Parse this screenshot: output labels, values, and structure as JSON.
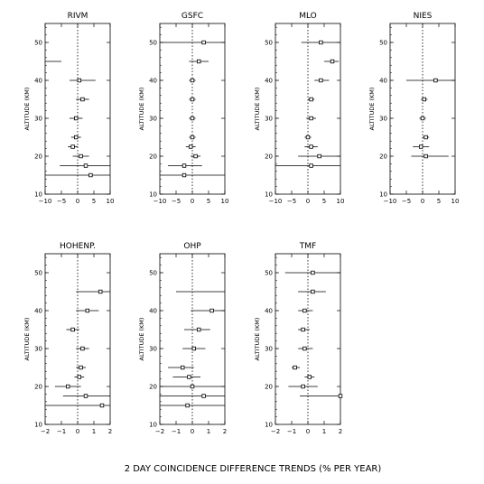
{
  "figure": {
    "caption": "2 DAY COINCIDENCE DIFFERENCE TRENDS (% PER YEAR)"
  },
  "chart_data": [
    {
      "type": "scatter",
      "title": "RIVM",
      "ylabel": "ALTITUDE (KM)",
      "xlabel": "",
      "xlim": [
        -10,
        10
      ],
      "ylim": [
        10,
        55
      ],
      "xticks": [
        "−10",
        "−5",
        "0",
        "5",
        "10"
      ],
      "yticks": [
        "10",
        "20",
        "30",
        "40",
        "50"
      ],
      "zero_line": "dotted",
      "points": [
        {
          "alt": 45,
          "trend": null,
          "err_lo": -10,
          "err_hi": -5
        },
        {
          "alt": 40,
          "trend": 0.5,
          "err_lo": -2.5,
          "err_hi": 5.5
        },
        {
          "alt": 35,
          "trend": 1.5,
          "err_lo": -0.5,
          "err_hi": 3.5
        },
        {
          "alt": 30,
          "trend": -0.5,
          "err_lo": -2.5,
          "err_hi": 1.5
        },
        {
          "alt": 25,
          "trend": -0.5,
          "err_lo": -2.0,
          "err_hi": 1.0
        },
        {
          "alt": 22.5,
          "trend": -1.5,
          "err_lo": -3.0,
          "err_hi": 0.0
        },
        {
          "alt": 20,
          "trend": 1.0,
          "err_lo": -1.5,
          "err_hi": 3.5
        },
        {
          "alt": 17.5,
          "trend": 2.5,
          "err_lo": -5.5,
          "err_hi": 10
        },
        {
          "alt": 15,
          "trend": 4.0,
          "err_lo": -10,
          "err_hi": 10
        }
      ]
    },
    {
      "type": "scatter",
      "title": "GSFC",
      "ylabel": "ALTITUDE (KM)",
      "xlabel": "",
      "xlim": [
        -10,
        10
      ],
      "ylim": [
        10,
        55
      ],
      "xticks": [
        "−10",
        "−5",
        "0",
        "5",
        "10"
      ],
      "yticks": [
        "10",
        "20",
        "30",
        "40",
        "50"
      ],
      "zero_line": "dotted",
      "points": [
        {
          "alt": 50,
          "trend": 3.5,
          "err_lo": -10,
          "err_hi": 10
        },
        {
          "alt": 45,
          "trend": 2.0,
          "err_lo": -1.0,
          "err_hi": 5.0
        },
        {
          "alt": 40,
          "trend": 0.0,
          "err_lo": -1.0,
          "err_hi": 1.0
        },
        {
          "alt": 35,
          "trend": 0.0,
          "err_lo": -1.0,
          "err_hi": 1.0
        },
        {
          "alt": 30,
          "trend": 0.0,
          "err_lo": -1.0,
          "err_hi": 1.0
        },
        {
          "alt": 25,
          "trend": 0.0,
          "err_lo": -1.0,
          "err_hi": 1.0
        },
        {
          "alt": 22.5,
          "trend": -0.5,
          "err_lo": -2.0,
          "err_hi": 1.0
        },
        {
          "alt": 20,
          "trend": 1.0,
          "err_lo": -0.5,
          "err_hi": 2.5
        },
        {
          "alt": 17.5,
          "trend": -2.5,
          "err_lo": -7.5,
          "err_hi": 3.0
        },
        {
          "alt": 15,
          "trend": -2.5,
          "err_lo": -10,
          "err_hi": 10
        }
      ]
    },
    {
      "type": "scatter",
      "title": "MLO",
      "ylabel": "ALTITUDE (KM)",
      "xlabel": "",
      "xlim": [
        -10,
        10
      ],
      "ylim": [
        10,
        55
      ],
      "xticks": [
        "−10",
        "−5",
        "0",
        "5",
        "10"
      ],
      "yticks": [
        "10",
        "20",
        "30",
        "40",
        "50"
      ],
      "zero_line": "dotted",
      "points": [
        {
          "alt": 50,
          "trend": 4.0,
          "err_lo": -2.0,
          "err_hi": 10
        },
        {
          "alt": 45,
          "trend": 7.5,
          "err_lo": 5.0,
          "err_hi": 9.5
        },
        {
          "alt": 40,
          "trend": 4.0,
          "err_lo": 2.0,
          "err_hi": 6.5
        },
        {
          "alt": 35,
          "trend": 1.0,
          "err_lo": 0.0,
          "err_hi": 2.0
        },
        {
          "alt": 30,
          "trend": 1.0,
          "err_lo": -0.5,
          "err_hi": 2.5
        },
        {
          "alt": 25,
          "trend": 0.0,
          "err_lo": -1.0,
          "err_hi": 1.0
        },
        {
          "alt": 22.5,
          "trend": 1.0,
          "err_lo": -1.0,
          "err_hi": 3.0
        },
        {
          "alt": 20,
          "trend": 3.5,
          "err_lo": -3.0,
          "err_hi": 10
        },
        {
          "alt": 17.5,
          "trend": 1.0,
          "err_lo": -10,
          "err_hi": 10
        }
      ]
    },
    {
      "type": "scatter",
      "title": "NIES",
      "ylabel": "ALTITUDE (KM)",
      "xlabel": "",
      "xlim": [
        -10,
        10
      ],
      "ylim": [
        10,
        55
      ],
      "xticks": [
        "−10",
        "−5",
        "0",
        "5",
        "10"
      ],
      "yticks": [
        "10",
        "20",
        "30",
        "40",
        "50"
      ],
      "zero_line": "dotted",
      "points": [
        {
          "alt": 40,
          "trend": 4.0,
          "err_lo": -5.0,
          "err_hi": 10
        },
        {
          "alt": 35,
          "trend": 0.5,
          "err_lo": -0.5,
          "err_hi": 1.5
        },
        {
          "alt": 30,
          "trend": 0.0,
          "err_lo": -1.0,
          "err_hi": 1.0
        },
        {
          "alt": 25,
          "trend": 1.0,
          "err_lo": 0.0,
          "err_hi": 2.0
        },
        {
          "alt": 22.5,
          "trend": -0.5,
          "err_lo": -3.0,
          "err_hi": 2.0
        },
        {
          "alt": 20,
          "trend": 1.0,
          "err_lo": -3.5,
          "err_hi": 8.0
        }
      ]
    },
    {
      "type": "scatter",
      "title": "HOHENP.",
      "ylabel": "ALTITUDE (KM)",
      "xlabel": "",
      "xlim": [
        -2,
        2
      ],
      "ylim": [
        10,
        55
      ],
      "xticks": [
        "−2",
        "−1",
        "0",
        "1",
        "2"
      ],
      "yticks": [
        "10",
        "20",
        "30",
        "40",
        "50"
      ],
      "zero_line": "dotted",
      "points": [
        {
          "alt": 45,
          "trend": 1.4,
          "err_lo": -0.1,
          "err_hi": 2.0
        },
        {
          "alt": 40,
          "trend": 0.6,
          "err_lo": -0.1,
          "err_hi": 1.3
        },
        {
          "alt": 35,
          "trend": -0.3,
          "err_lo": -0.7,
          "err_hi": 0.1
        },
        {
          "alt": 30,
          "trend": 0.3,
          "err_lo": -0.1,
          "err_hi": 0.7
        },
        {
          "alt": 25,
          "trend": 0.2,
          "err_lo": -0.1,
          "err_hi": 0.5
        },
        {
          "alt": 22.5,
          "trend": 0.1,
          "err_lo": -0.2,
          "err_hi": 0.4
        },
        {
          "alt": 20,
          "trend": -0.6,
          "err_lo": -1.4,
          "err_hi": 0.2
        },
        {
          "alt": 17.5,
          "trend": 0.5,
          "err_lo": -0.9,
          "err_hi": 2.0
        },
        {
          "alt": 15,
          "trend": 1.5,
          "err_lo": -2.0,
          "err_hi": 2.0
        }
      ]
    },
    {
      "type": "scatter",
      "title": "OHP",
      "ylabel": "ALTITUDE (KM)",
      "xlabel": "",
      "xlim": [
        -2,
        2
      ],
      "ylim": [
        10,
        55
      ],
      "xticks": [
        "−2",
        "−1",
        "0",
        "1",
        "2"
      ],
      "yticks": [
        "10",
        "20",
        "30",
        "40",
        "50"
      ],
      "zero_line": "dotted",
      "points": [
        {
          "alt": 45,
          "trend": null,
          "err_lo": -1.0,
          "err_hi": 2.0
        },
        {
          "alt": 40,
          "trend": 1.2,
          "err_lo": -0.1,
          "err_hi": 2.0
        },
        {
          "alt": 35,
          "trend": 0.4,
          "err_lo": -0.5,
          "err_hi": 1.1
        },
        {
          "alt": 30,
          "trend": 0.1,
          "err_lo": -0.6,
          "err_hi": 0.8
        },
        {
          "alt": 25,
          "trend": -0.6,
          "err_lo": -1.5,
          "err_hi": 0.1
        },
        {
          "alt": 22.5,
          "trend": -0.2,
          "err_lo": -1.2,
          "err_hi": 0.5
        },
        {
          "alt": 20,
          "trend": 0.0,
          "err_lo": -2.0,
          "err_hi": 2.0
        },
        {
          "alt": 17.5,
          "trend": 0.7,
          "err_lo": -2.0,
          "err_hi": 2.0
        },
        {
          "alt": 15,
          "trend": -0.3,
          "err_lo": -2.0,
          "err_hi": 2.0
        }
      ]
    },
    {
      "type": "scatter",
      "title": "TMF",
      "ylabel": "ALTITUDE (KM)",
      "xlabel": "",
      "xlim": [
        -2,
        2
      ],
      "ylim": [
        10,
        55
      ],
      "xticks": [
        "−2",
        "−1",
        "0",
        "1",
        "2"
      ],
      "yticks": [
        "10",
        "20",
        "30",
        "40",
        "50"
      ],
      "zero_line": "dotted",
      "points": [
        {
          "alt": 50,
          "trend": 0.3,
          "err_lo": -1.4,
          "err_hi": 2.0
        },
        {
          "alt": 45,
          "trend": 0.3,
          "err_lo": -0.6,
          "err_hi": 1.1
        },
        {
          "alt": 40,
          "trend": -0.2,
          "err_lo": -0.6,
          "err_hi": 0.3
        },
        {
          "alt": 35,
          "trend": -0.3,
          "err_lo": -0.6,
          "err_hi": 0.1
        },
        {
          "alt": 30,
          "trend": -0.2,
          "err_lo": -0.6,
          "err_hi": 0.3
        },
        {
          "alt": 25,
          "trend": -0.8,
          "err_lo": -1.0,
          "err_hi": -0.5
        },
        {
          "alt": 22.5,
          "trend": 0.1,
          "err_lo": -0.2,
          "err_hi": 0.4
        },
        {
          "alt": 20,
          "trend": -0.3,
          "err_lo": -1.2,
          "err_hi": 0.6
        },
        {
          "alt": 17.5,
          "trend": 2.0,
          "err_lo": -0.5,
          "err_hi": 2.0
        }
      ]
    }
  ]
}
